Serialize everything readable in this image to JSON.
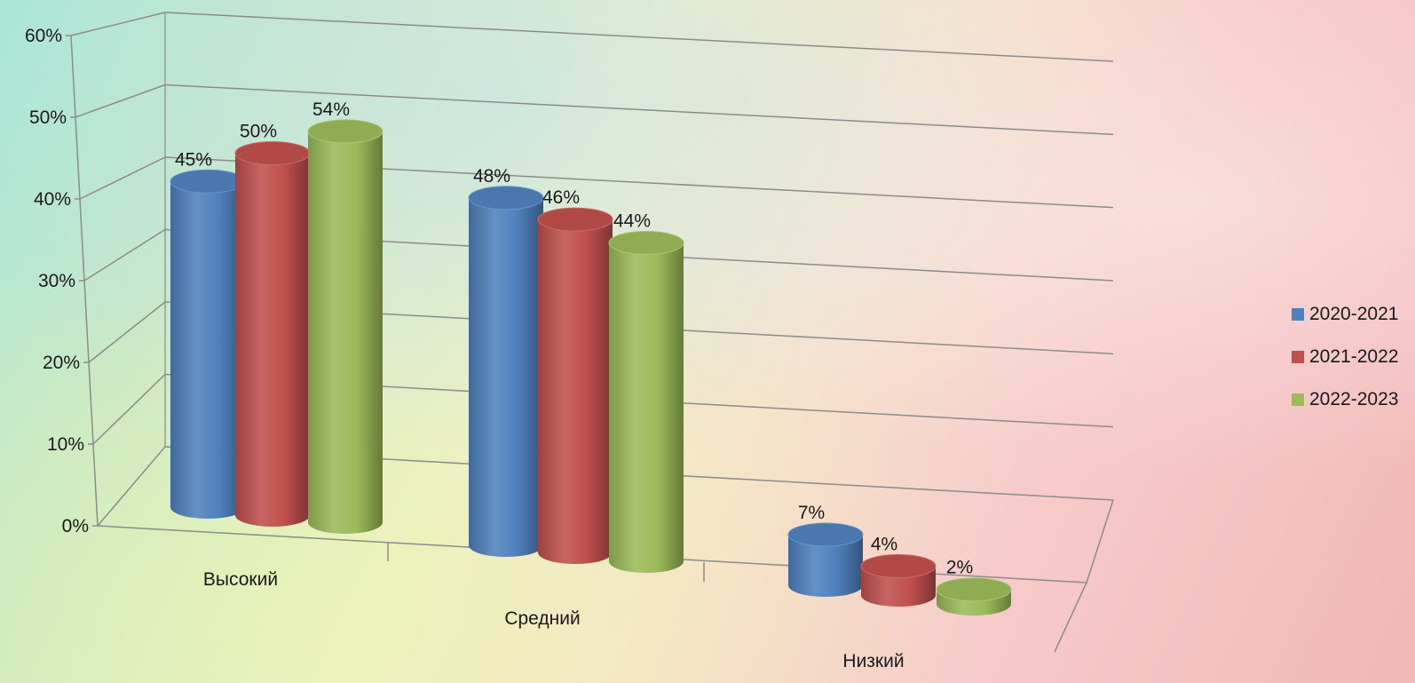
{
  "chart_data": {
    "type": "bar",
    "style": "3d-cylinder",
    "categories": [
      "Высокий",
      "Средний",
      "Низкий"
    ],
    "series": [
      {
        "name": "2020-2021",
        "values": [
          45,
          48,
          7
        ],
        "labels": [
          "45%",
          "48%",
          "7%"
        ],
        "color": "#4f81bd"
      },
      {
        "name": "2021-2022",
        "values": [
          50,
          46,
          4
        ],
        "labels": [
          "50%",
          "46%",
          "4%"
        ],
        "color": "#c0504d"
      },
      {
        "name": "2022-2023",
        "values": [
          54,
          44,
          2
        ],
        "labels": [
          "54%",
          "44%",
          "2%"
        ],
        "color": "#9bbb59"
      }
    ],
    "ylim": [
      0,
      60
    ],
    "yticks": [
      "0%",
      "10%",
      "20%",
      "30%",
      "40%",
      "50%",
      "60%"
    ],
    "grid": true,
    "legend": "right"
  }
}
